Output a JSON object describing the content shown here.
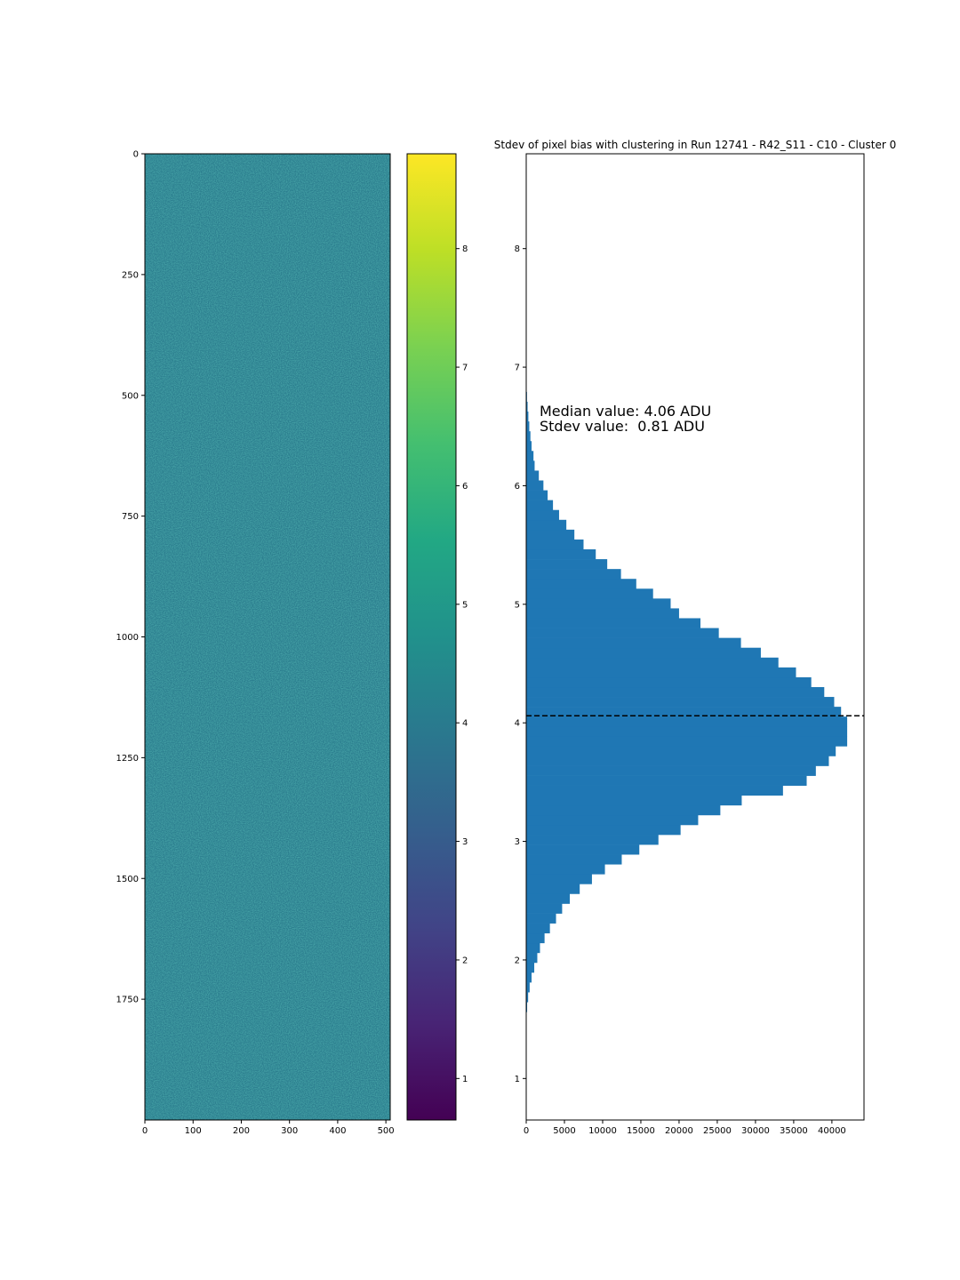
{
  "chart_data": [
    {
      "type": "heatmap",
      "title": "",
      "xlabel": "",
      "ylabel": "",
      "xlim": [
        0,
        509
      ],
      "ylim": [
        2000,
        0
      ],
      "x_ticks": [
        0,
        100,
        200,
        300,
        400,
        500
      ],
      "y_ticks": [
        0,
        250,
        500,
        750,
        1000,
        1250,
        1500,
        1750
      ],
      "colormap": "viridis",
      "color_range": [
        0.65,
        8.8
      ],
      "colorbar_ticks": [
        1,
        2,
        3,
        4,
        5,
        6,
        7,
        8
      ],
      "typical_value": 4.06,
      "typical_spread": 0.81
    },
    {
      "type": "bar",
      "orientation": "horizontal",
      "title": "Stdev of pixel bias with clustering in Run 12741 - R42_S11 - C10 - Cluster 0",
      "xlabel": "",
      "ylabel": "",
      "xlim": [
        0,
        44200
      ],
      "ylim": [
        0.65,
        8.8
      ],
      "x_ticks": [
        0,
        5000,
        10000,
        15000,
        20000,
        25000,
        30000,
        35000,
        40000
      ],
      "y_ticks": [
        1,
        2,
        3,
        4,
        5,
        6,
        7,
        8
      ],
      "bin_width": 0.083,
      "bin_centers": [
        1.604,
        1.687,
        1.77,
        1.853,
        1.936,
        2.019,
        2.102,
        2.185,
        2.268,
        2.351,
        2.434,
        2.517,
        2.6,
        2.683,
        2.766,
        2.849,
        2.932,
        3.015,
        3.098,
        3.181,
        3.264,
        3.347,
        3.43,
        3.513,
        3.596,
        3.679,
        3.762,
        3.845,
        3.928,
        4.011,
        4.094,
        4.177,
        4.26,
        4.343,
        4.426,
        4.509,
        4.592,
        4.675,
        4.758,
        4.841,
        4.924,
        5.007,
        5.09,
        5.173,
        5.256,
        5.339,
        5.422,
        5.505,
        5.588,
        5.671,
        5.754,
        5.837,
        5.92,
        6.003,
        6.086,
        6.169,
        6.252,
        6.335,
        6.418,
        6.501,
        6.584,
        6.667,
        6.75
      ],
      "values": [
        120,
        250,
        450,
        700,
        1050,
        1450,
        1800,
        2400,
        3100,
        3900,
        4700,
        5700,
        7000,
        8600,
        10300,
        12500,
        14800,
        17300,
        20200,
        22500,
        25400,
        28200,
        33600,
        36700,
        37900,
        39600,
        40500,
        42000,
        42000,
        42000,
        41200,
        40300,
        39000,
        37300,
        35300,
        33000,
        30700,
        28100,
        25200,
        22800,
        20000,
        18900,
        16600,
        14400,
        12400,
        10600,
        9100,
        7500,
        6300,
        5250,
        4300,
        3500,
        2800,
        2250,
        1650,
        1100,
        950,
        700,
        550,
        400,
        280,
        180,
        100
      ],
      "median_line": 4.06,
      "annotation": {
        "line1": "Median value: 4.06 ADU",
        "line2": "Stdev value:  0.81 ADU"
      },
      "bar_color": "#1f77b4"
    }
  ]
}
